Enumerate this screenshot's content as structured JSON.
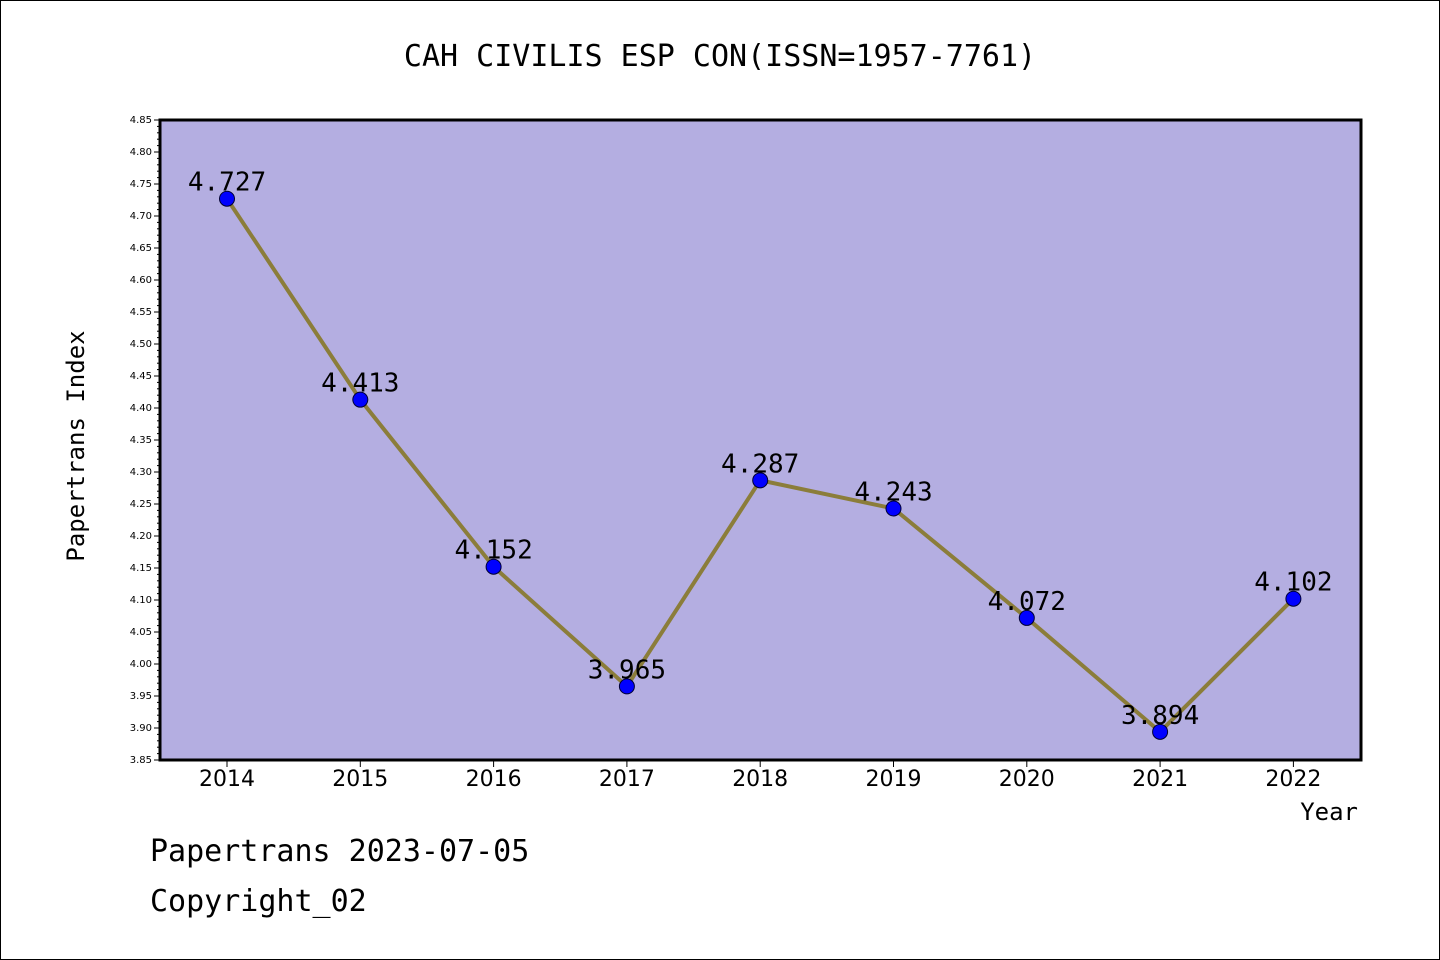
{
  "chart_data": {
    "type": "line",
    "title": "CAH CIVILIS ESP CON(ISSN=1957-7761)",
    "xlabel": "Year",
    "ylabel": "Papertrans Index",
    "categories": [
      "2014",
      "2015",
      "2016",
      "2017",
      "2018",
      "2019",
      "2020",
      "2021",
      "2022"
    ],
    "values": [
      4.727,
      4.413,
      4.152,
      3.965,
      4.287,
      4.243,
      4.072,
      3.894,
      4.102
    ],
    "data_labels": [
      "4.727",
      "4.413",
      "4.152",
      "3.965",
      "4.287",
      "4.243",
      "4.072",
      "3.894",
      "4.102"
    ],
    "ylim": [
      3.85,
      4.85
    ],
    "yticks": [
      "3.85",
      "3.90",
      "3.95",
      "4.00",
      "4.05",
      "4.10",
      "4.15",
      "4.20",
      "4.25",
      "4.30",
      "4.35",
      "4.40",
      "4.45",
      "4.50",
      "4.55",
      "4.60",
      "4.65",
      "4.70",
      "4.75",
      "4.80",
      "4.85"
    ],
    "grid": false,
    "colors": {
      "plot_background": "#b4aee1",
      "line": "#8b7d3a",
      "marker": "#0000ff"
    }
  },
  "footer": {
    "line1": "Papertrans 2023-07-05",
    "line2": "Copyright_02"
  }
}
